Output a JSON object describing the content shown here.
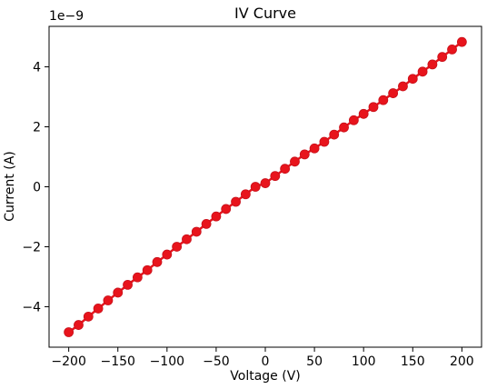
{
  "chart_data": {
    "type": "scatter",
    "title": "IV  Curve",
    "xlabel": "Voltage (V)",
    "ylabel": "Current (A)",
    "y_offset_text": "1e−9",
    "xlim": [
      -220,
      220
    ],
    "ylim": [
      -5.35,
      5.35
    ],
    "xticks": [
      -200,
      -150,
      -100,
      -50,
      0,
      50,
      100,
      150,
      200
    ],
    "xtick_labels": [
      "−200",
      "−150",
      "−100",
      "−50",
      "0",
      "50",
      "100",
      "150",
      "200"
    ],
    "yticks": [
      -4,
      -2,
      0,
      2,
      4
    ],
    "ytick_labels": [
      "−4",
      "−2",
      "0",
      "2",
      "4"
    ],
    "grid": false,
    "series": [
      {
        "color": "#e8141c",
        "marker": "circle-line",
        "x": [
          -200,
          -190,
          -180,
          -170,
          -160,
          -150,
          -140,
          -130,
          -120,
          -110,
          -100,
          -90,
          -80,
          -70,
          -60,
          -50,
          -40,
          -30,
          -20,
          -10,
          0,
          10,
          20,
          30,
          40,
          50,
          60,
          70,
          80,
          90,
          100,
          110,
          120,
          130,
          140,
          150,
          160,
          170,
          180,
          190,
          200
        ],
        "y": [
          -4.85,
          -4.61,
          -4.33,
          -4.06,
          -3.79,
          -3.53,
          -3.27,
          -3.02,
          -2.78,
          -2.51,
          -2.26,
          -2.0,
          -1.75,
          -1.5,
          -1.24,
          -0.99,
          -0.74,
          -0.5,
          -0.25,
          0.0,
          0.12,
          0.36,
          0.6,
          0.84,
          1.08,
          1.28,
          1.5,
          1.74,
          1.98,
          2.22,
          2.43,
          2.66,
          2.89,
          3.12,
          3.35,
          3.6,
          3.84,
          4.08,
          4.33,
          4.58,
          4.83
        ]
      }
    ]
  }
}
